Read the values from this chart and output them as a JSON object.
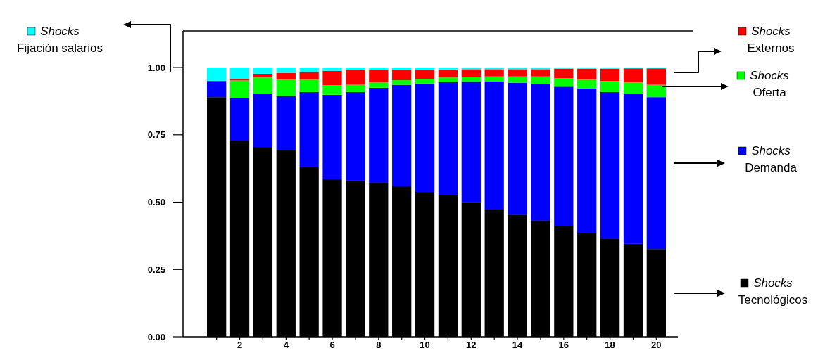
{
  "chart_data": {
    "type": "bar",
    "stacked": true,
    "legend": "right",
    "categories": [
      null,
      "2",
      null,
      "4",
      null,
      "6",
      null,
      "8",
      null,
      "10",
      null,
      "12",
      null,
      "14",
      null,
      "16",
      null,
      "18",
      null,
      "20"
    ],
    "ylim": [
      0,
      1.136
    ],
    "yticks": [
      {
        "value": 0,
        "label": "0.00"
      },
      {
        "value": 0.25,
        "label": "0.25"
      },
      {
        "value": 0.5,
        "label": "0.50"
      },
      {
        "value": 0.75,
        "label": "0.75"
      },
      {
        "value": 1,
        "label": "1.00"
      }
    ],
    "series": [
      {
        "name": "Shocks Tecnológicos",
        "color": "#000000",
        "values": [
          0.89,
          0.728,
          0.705,
          0.692,
          0.632,
          0.585,
          0.58,
          0.572,
          0.559,
          0.538,
          0.527,
          0.499,
          0.475,
          0.454,
          0.431,
          0.41,
          0.386,
          0.363,
          0.345,
          0.326
        ]
      },
      {
        "name": "Shocks Demanda",
        "color": "#0000ff",
        "values": [
          0.058,
          0.159,
          0.197,
          0.202,
          0.277,
          0.314,
          0.329,
          0.353,
          0.377,
          0.403,
          0.419,
          0.448,
          0.473,
          0.489,
          0.509,
          0.519,
          0.536,
          0.546,
          0.557,
          0.564
        ]
      },
      {
        "name": "Shocks Oferta",
        "color": "#00ff00",
        "values": [
          0.0,
          0.065,
          0.061,
          0.061,
          0.047,
          0.035,
          0.027,
          0.021,
          0.017,
          0.017,
          0.017,
          0.019,
          0.019,
          0.024,
          0.027,
          0.032,
          0.034,
          0.041,
          0.043,
          0.046
        ]
      },
      {
        "name": "Shocks Externos",
        "color": "#ff0000",
        "values": [
          0.003,
          0.006,
          0.014,
          0.025,
          0.027,
          0.054,
          0.054,
          0.045,
          0.039,
          0.034,
          0.03,
          0.028,
          0.027,
          0.027,
          0.027,
          0.035,
          0.04,
          0.046,
          0.052,
          0.061
        ]
      },
      {
        "name": "Shocks Fijación salarios",
        "color": "#00ffff",
        "values": [
          0.049,
          0.042,
          0.023,
          0.02,
          0.017,
          0.012,
          0.01,
          0.009,
          0.008,
          0.008,
          0.007,
          0.006,
          0.006,
          0.006,
          0.006,
          0.004,
          0.004,
          0.004,
          0.003,
          0.003
        ]
      }
    ]
  }
}
